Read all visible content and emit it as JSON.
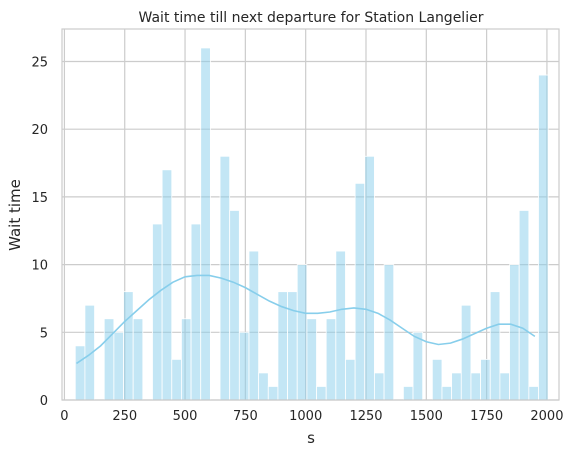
{
  "chart_data": {
    "type": "bar",
    "subtype": "histogram-with-kde",
    "title": "Wait time till next departure for Station Langelier",
    "xlabel": "s",
    "ylabel": "Wait time",
    "xlim": [
      -10,
      2050
    ],
    "ylim": [
      0,
      27.4
    ],
    "xticks": [
      0,
      250,
      500,
      750,
      1000,
      1250,
      1500,
      1750,
      2000
    ],
    "yticks": [
      0,
      5,
      10,
      15,
      20,
      25
    ],
    "grid": true,
    "bin_start": 45,
    "bin_width": 40,
    "counts": [
      4,
      7,
      0,
      6,
      5,
      8,
      6,
      0,
      13,
      17,
      3,
      6,
      13,
      26,
      0,
      18,
      14,
      5,
      11,
      2,
      1,
      8,
      8,
      10,
      6,
      1,
      6,
      11,
      3,
      16,
      18,
      2,
      10,
      0,
      1,
      5,
      0,
      3,
      1,
      2,
      7,
      2,
      3,
      8,
      2,
      10,
      14,
      1,
      24
    ],
    "kde": {
      "x": [
        50,
        100,
        150,
        200,
        250,
        300,
        350,
        400,
        450,
        500,
        550,
        600,
        650,
        700,
        750,
        800,
        850,
        900,
        950,
        1000,
        1050,
        1100,
        1150,
        1200,
        1250,
        1300,
        1350,
        1400,
        1450,
        1500,
        1550,
        1600,
        1650,
        1700,
        1750,
        1800,
        1850,
        1900,
        1950
      ],
      "y": [
        2.7,
        3.3,
        4.0,
        4.9,
        5.8,
        6.6,
        7.4,
        8.1,
        8.7,
        9.1,
        9.2,
        9.2,
        9.0,
        8.7,
        8.3,
        7.8,
        7.3,
        6.9,
        6.6,
        6.4,
        6.4,
        6.5,
        6.7,
        6.8,
        6.7,
        6.4,
        5.9,
        5.3,
        4.7,
        4.3,
        4.1,
        4.2,
        4.5,
        4.9,
        5.3,
        5.6,
        5.6,
        5.3,
        4.7
      ]
    },
    "colors": {
      "bar_fill": "#87ceeb",
      "bar_fill_opacity": 0.5,
      "kde_line": "#87ceeb",
      "grid": "#cccccc",
      "text": "#262626"
    }
  }
}
